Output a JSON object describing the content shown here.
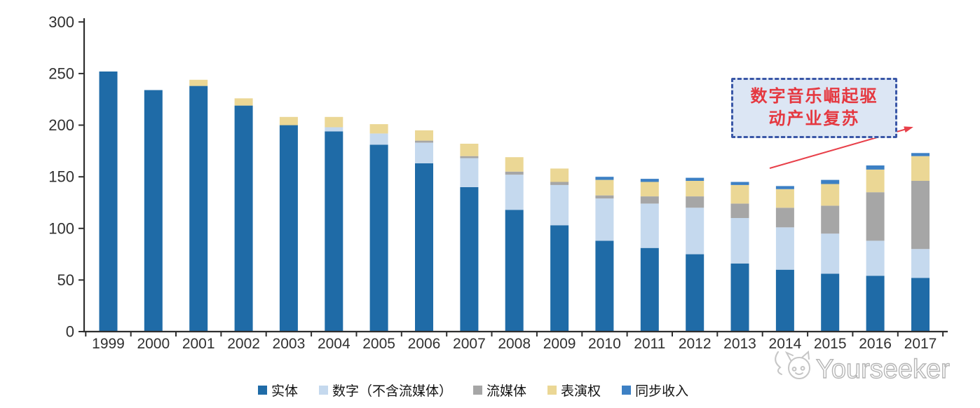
{
  "chart_data": {
    "type": "bar",
    "stacked": true,
    "title": "",
    "xlabel": "",
    "ylabel": "",
    "ylim": [
      0,
      300
    ],
    "y_ticks": [
      "0",
      "50",
      "100",
      "150",
      "200",
      "250",
      "300"
    ],
    "grid": false,
    "legend_position": "bottom",
    "categories": [
      "1999",
      "2000",
      "2001",
      "2002",
      "2003",
      "2004",
      "2005",
      "2006",
      "2007",
      "2008",
      "2009",
      "2010",
      "2011",
      "2012",
      "2013",
      "2014",
      "2015",
      "2016",
      "2017"
    ],
    "series": [
      {
        "key": "physical",
        "name": "实体",
        "color": "#1f6ba7",
        "values": [
          252,
          234,
          238,
          219,
          200,
          194,
          181,
          163,
          140,
          118,
          103,
          88,
          81,
          75,
          66,
          60,
          56,
          54,
          52
        ]
      },
      {
        "key": "digital-excl-streaming",
        "name": "数字（不含流媒体）",
        "color": "#c5d9ee",
        "values": [
          0,
          0,
          0,
          0,
          0,
          4,
          11,
          20,
          28,
          34,
          39,
          41,
          43,
          45,
          44,
          41,
          39,
          34,
          28
        ]
      },
      {
        "key": "streaming",
        "name": "流媒体",
        "color": "#a6a6a6",
        "values": [
          0,
          0,
          0,
          0,
          0,
          0,
          0,
          2,
          2,
          3,
          3,
          3,
          7,
          11,
          14,
          19,
          27,
          47,
          66
        ]
      },
      {
        "key": "performance-rights",
        "name": "表演权",
        "color": "#ebd795",
        "values": [
          0,
          0,
          6,
          7,
          8,
          10,
          9,
          10,
          12,
          14,
          13,
          15,
          14,
          15,
          18,
          18,
          21,
          22,
          24
        ]
      },
      {
        "key": "sync-revenue",
        "name": "同步收入",
        "color": "#3d80c4",
        "values": [
          0,
          0,
          0,
          0,
          0,
          0,
          0,
          0,
          0,
          0,
          0,
          3,
          3,
          3,
          3,
          3,
          4,
          4,
          3
        ]
      }
    ],
    "axis_color": "#2f2f2f",
    "tick_label_color": "#303030"
  },
  "annotation": {
    "line1": "数字音乐崛起驱",
    "line2": "动产业复苏",
    "text_color": "#e53840",
    "border_color": "#3a57a7",
    "fill_color": "#dce6f4",
    "arrow_color": "#e8404a"
  },
  "watermark": {
    "text": "Yourseeker",
    "color": "#b5b5b5"
  }
}
